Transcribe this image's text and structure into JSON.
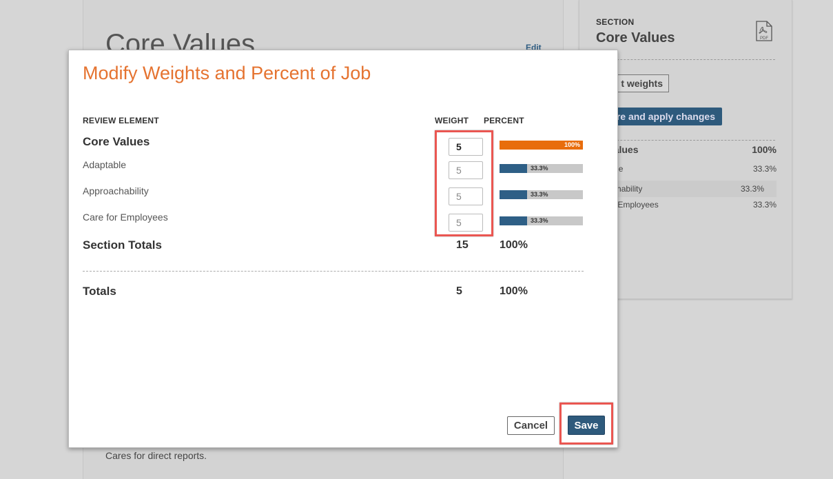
{
  "background": {
    "main_title": "Core Values",
    "edit_link": "Edit",
    "description": "Cares for direct reports."
  },
  "sidebar": {
    "kicker": "SECTION",
    "title": "Core Values",
    "pdf_icon": "pdf-icon",
    "pdf_label": "PDF",
    "edit_weights_label": "t weights",
    "apply_label": "re and apply changes",
    "summary": {
      "head_label": "re Values",
      "head_value": "100%",
      "rows": [
        {
          "label": "aptable",
          "value": "33.3%"
        },
        {
          "label": "proachability",
          "value": "33.3%"
        },
        {
          "label": "re for Employees",
          "value": "33.3%"
        }
      ]
    }
  },
  "modal": {
    "title": "Modify Weights and Percent of Job",
    "columns": {
      "review_element": "REVIEW ELEMENT",
      "weight": "WEIGHT",
      "percent": "PERCENT"
    },
    "section": {
      "label": "Core Values",
      "weight": "5",
      "percent": 1.0,
      "percent_label": "100%"
    },
    "elements": [
      {
        "label": "Adaptable",
        "weight": "5",
        "percent": 0.333,
        "percent_label": "33.3%"
      },
      {
        "label": "Approachability",
        "weight": "5",
        "percent": 0.333,
        "percent_label": "33.3%"
      },
      {
        "label": "Care for Employees",
        "weight": "5",
        "percent": 0.333,
        "percent_label": "33.3%"
      }
    ],
    "section_totals": {
      "label": "Section Totals",
      "weight": "15",
      "percent": "100%"
    },
    "totals": {
      "label": "Totals",
      "weight": "5",
      "percent": "100%"
    },
    "cancel_label": "Cancel",
    "save_label": "Save",
    "colors": {
      "title": "#e57330",
      "section_bar": "#e86d0c",
      "element_bar": "#2e5f86",
      "highlight": "#ea5651",
      "save_button": "#2e5a7c"
    }
  }
}
